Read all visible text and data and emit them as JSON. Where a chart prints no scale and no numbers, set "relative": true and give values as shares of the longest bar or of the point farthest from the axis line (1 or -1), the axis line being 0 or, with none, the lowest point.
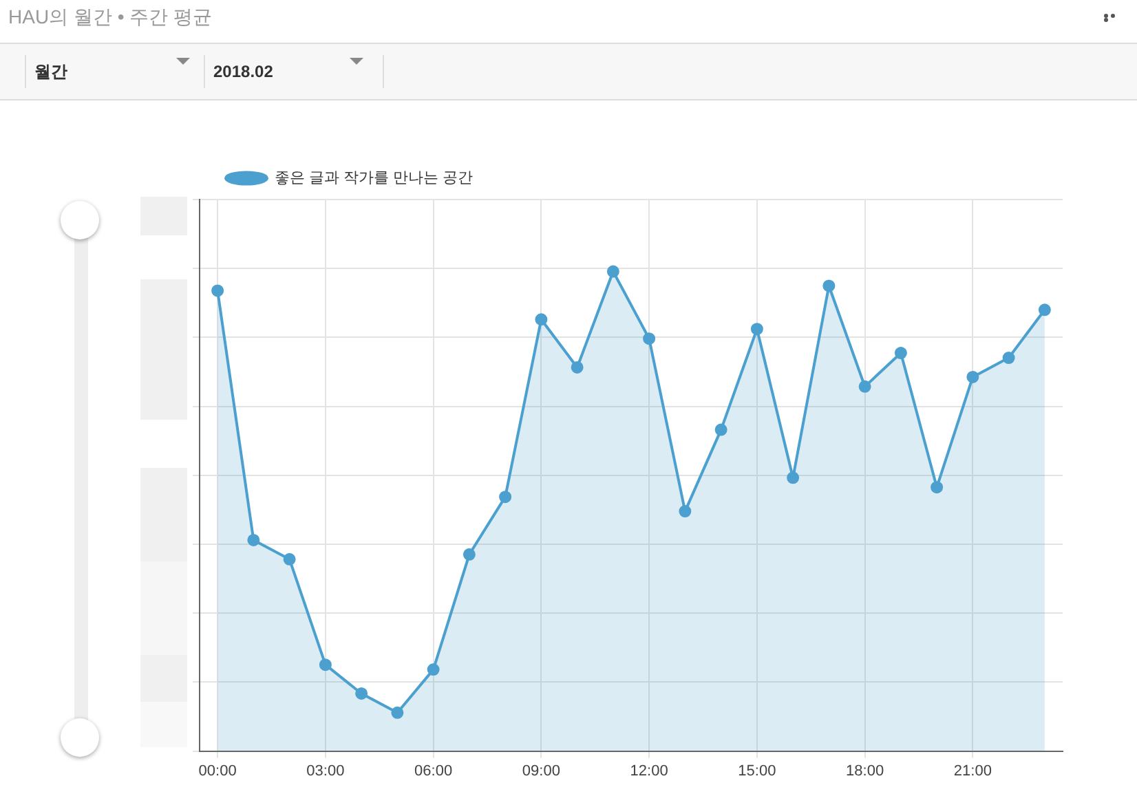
{
  "chart_data": {
    "type": "area",
    "title": "HAU의 월간 • 주간 평균",
    "annotations": [
      "월간",
      "2018.02"
    ],
    "categories": [
      "00:00",
      null,
      null,
      "03:00",
      null,
      null,
      "06:00",
      null,
      null,
      "09:00",
      null,
      null,
      "12:00",
      null,
      null,
      "15:00",
      null,
      null,
      "18:00",
      null,
      null,
      "21:00",
      null,
      null
    ],
    "relative": true,
    "grid": true,
    "legend": "top left",
    "marker": "circle",
    "line_style": "solid",
    "series": [
      {
        "name": "좋은 글과 작가를 만나는 공간",
        "color": "#4ba0cf",
        "values": [
          0.96,
          0.44,
          0.4,
          0.18,
          0.12,
          0.08,
          0.17,
          0.41,
          0.53,
          0.9,
          0.8,
          1,
          0.86,
          0.5,
          0.67,
          0.88,
          0.57,
          0.97,
          0.76,
          0.83,
          0.55,
          0.78,
          0.82,
          0.92
        ]
      }
    ]
  }
}
